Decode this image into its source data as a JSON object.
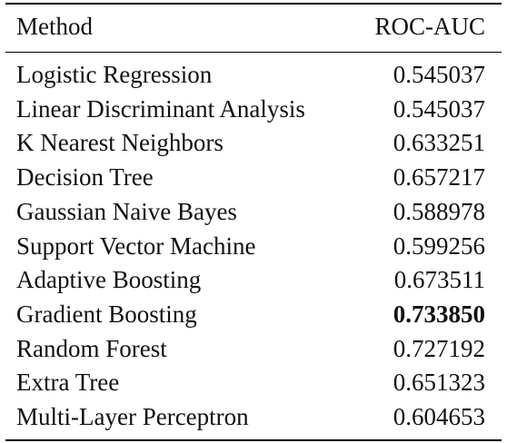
{
  "table": {
    "headers": {
      "method": "Method",
      "metric": "ROC-AUC"
    },
    "rows": [
      {
        "method": "Logistic Regression",
        "value": "0.545037"
      },
      {
        "method": "Linear Discriminant Analysis",
        "value": "0.545037"
      },
      {
        "method": "K Nearest Neighbors",
        "value": "0.633251"
      },
      {
        "method": "Decision Tree",
        "value": "0.657217"
      },
      {
        "method": "Gaussian Naive Bayes",
        "value": "0.588978"
      },
      {
        "method": "Support Vector Machine",
        "value": "0.599256"
      },
      {
        "method": "Adaptive Boosting",
        "value": "0.673511"
      },
      {
        "method": "Gradient Boosting",
        "value": "0.733850",
        "bold": true
      },
      {
        "method": "Random Forest",
        "value": "0.727192"
      },
      {
        "method": "Extra Tree",
        "value": "0.651323"
      },
      {
        "method": "Multi-Layer Perceptron",
        "value": "0.604653"
      }
    ]
  }
}
